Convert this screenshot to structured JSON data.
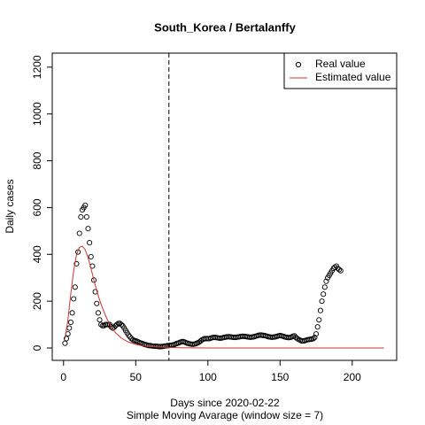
{
  "chart_data": {
    "type": "scatter",
    "title": "South_Korea / Bertalanffy",
    "x_label": "Days since 2020-02-22",
    "subtitle": "Simple Moving Avarage (window size = 7)",
    "y_label": "Daily cases",
    "xlim": [
      -7.84,
      230.8
    ],
    "ylim": [
      -53,
      1260
    ],
    "xticks": [
      0,
      50,
      100,
      150,
      200
    ],
    "yticks": [
      0,
      200,
      400,
      600,
      800,
      1000,
      1200
    ],
    "vline": 73,
    "legend": "top-right",
    "series": [
      {
        "name": "Real value",
        "type": "points",
        "color": "#000000",
        "x": [
          1,
          2,
          3,
          4,
          5,
          6,
          7,
          8,
          9,
          10,
          11,
          12,
          13,
          14,
          15,
          16,
          17,
          18,
          19,
          20,
          21,
          22,
          23,
          24,
          25,
          26,
          27,
          28,
          29,
          30,
          31,
          32,
          33,
          34,
          35,
          36,
          37,
          38,
          39,
          40,
          41,
          42,
          43,
          44,
          45,
          46,
          47,
          48,
          49,
          50,
          51,
          52,
          53,
          54,
          55,
          56,
          57,
          58,
          59,
          60,
          61,
          62,
          63,
          64,
          65,
          66,
          67,
          68,
          69,
          70,
          71,
          72,
          73,
          74,
          75,
          76,
          77,
          78,
          79,
          80,
          81,
          82,
          83,
          84,
          85,
          86,
          87,
          88,
          89,
          90,
          91,
          92,
          93,
          94,
          95,
          96,
          97,
          98,
          99,
          100,
          101,
          102,
          103,
          104,
          105,
          106,
          107,
          108,
          109,
          110,
          111,
          112,
          113,
          114,
          115,
          116,
          117,
          118,
          119,
          120,
          121,
          122,
          123,
          124,
          125,
          126,
          127,
          128,
          129,
          130,
          131,
          132,
          133,
          134,
          135,
          136,
          137,
          138,
          139,
          140,
          141,
          142,
          143,
          144,
          145,
          146,
          147,
          148,
          149,
          150,
          151,
          152,
          153,
          154,
          155,
          156,
          157,
          158,
          159,
          160,
          161,
          162,
          163,
          164,
          165,
          166,
          167,
          168,
          169,
          170,
          171,
          172,
          173,
          174,
          175,
          176,
          177,
          178,
          179,
          180,
          181,
          182,
          183,
          184,
          185,
          186,
          187,
          188,
          189,
          190,
          191,
          192
        ],
        "values": [
          20,
          40,
          60,
          85,
          110,
          150,
          210,
          260,
          360,
          410,
          490,
          560,
          590,
          600,
          610,
          560,
          510,
          450,
          390,
          350,
          290,
          240,
          190,
          150,
          120,
          100,
          95,
          95,
          100,
          100,
          100,
          100,
          90,
          85,
          88,
          95,
          100,
          105,
          105,
          100,
          95,
          85,
          75,
          65,
          55,
          48,
          40,
          35,
          32,
          30,
          28,
          25,
          22,
          20,
          18,
          15,
          14,
          12,
          10,
          10,
          9,
          8,
          8,
          7,
          7,
          6,
          6,
          6,
          7,
          8,
          9,
          10,
          10,
          11,
          12,
          13,
          15,
          18,
          20,
          22,
          25,
          27,
          27,
          25,
          22,
          20,
          18,
          17,
          16,
          16,
          17,
          19,
          22,
          25,
          30,
          35,
          38,
          40,
          40,
          40,
          40,
          42,
          44,
          45,
          45,
          44,
          43,
          42,
          42,
          43,
          45,
          46,
          47,
          48,
          48,
          47,
          46,
          45,
          45,
          46,
          47,
          48,
          49,
          50,
          50,
          49,
          48,
          47,
          46,
          46,
          47,
          48,
          50,
          52,
          54,
          55,
          55,
          54,
          53,
          52,
          50,
          48,
          47,
          46,
          46,
          47,
          48,
          50,
          52,
          53,
          52,
          50,
          48,
          46,
          45,
          44,
          45,
          47,
          50,
          52,
          45,
          40,
          36,
          33,
          30,
          30,
          31,
          33,
          35,
          36,
          37,
          38,
          40,
          45,
          60,
          90,
          120,
          160,
          200,
          230,
          260,
          285,
          300,
          310,
          320,
          330,
          340,
          345,
          350,
          340,
          335,
          330
        ]
      },
      {
        "name": "Estimated value",
        "type": "line",
        "color": "#cc3333",
        "x": [
          1,
          3,
          5,
          7,
          9,
          11,
          13,
          15,
          17,
          19,
          21,
          23,
          25,
          27,
          30,
          33,
          36,
          40,
          45,
          50,
          55,
          60,
          70,
          80,
          100,
          150,
          222
        ],
        "values": [
          40,
          120,
          230,
          330,
          400,
          430,
          435,
          420,
          385,
          340,
          290,
          245,
          205,
          170,
          125,
          90,
          65,
          42,
          25,
          15,
          9,
          6,
          3,
          1,
          0,
          0,
          0
        ]
      }
    ]
  }
}
